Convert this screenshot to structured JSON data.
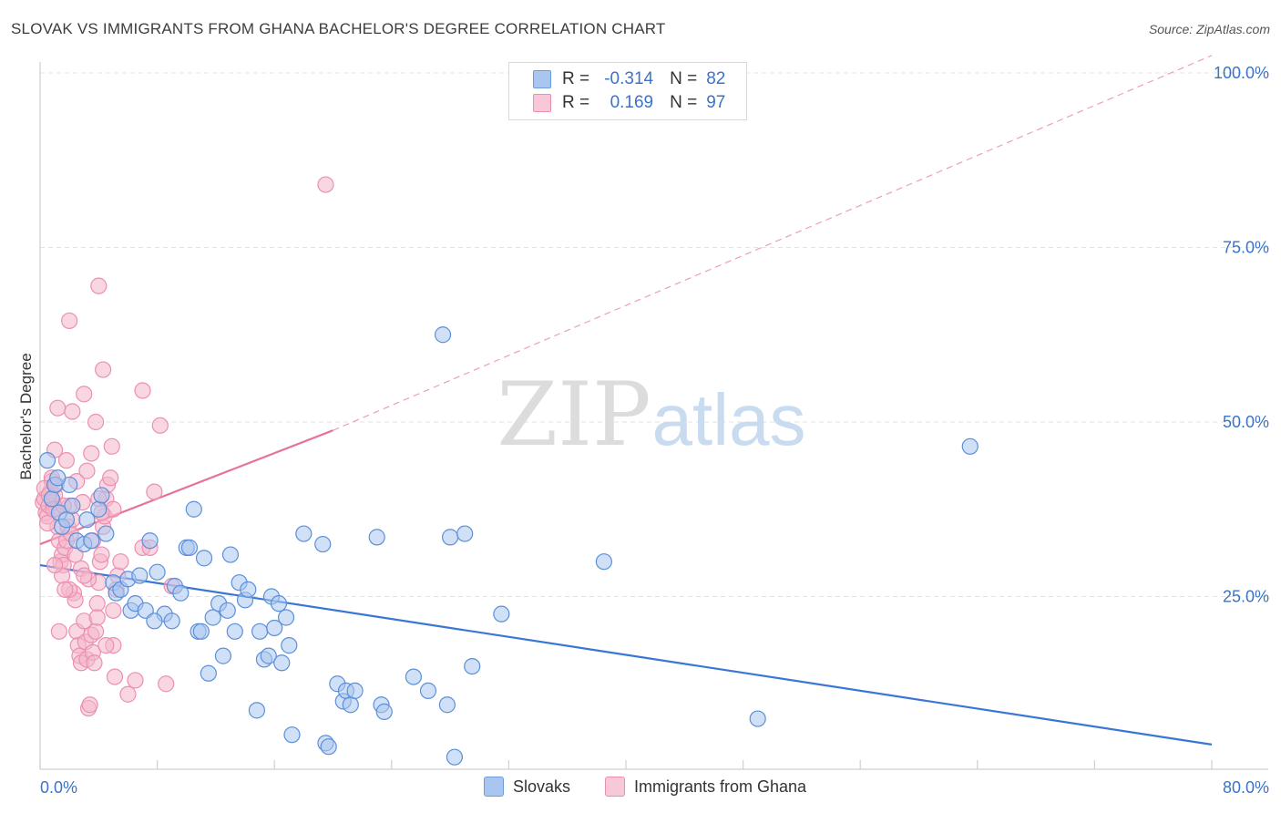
{
  "title": "SLOVAK VS IMMIGRANTS FROM GHANA BACHELOR'S DEGREE CORRELATION CHART",
  "source": "Source: ZipAtlas.com",
  "watermark": {
    "zip": "ZIP",
    "atlas": "atlas"
  },
  "legend": {
    "r_label": "R =",
    "n_label": "N =",
    "series1": {
      "r": "-0.314",
      "n": "82"
    },
    "series2": {
      "r": "0.169",
      "n": "97"
    }
  },
  "bottom_legend": {
    "series1": "Slovaks",
    "series2": "Immigrants from Ghana"
  },
  "chart_data": {
    "type": "scatter",
    "title": "SLOVAK VS IMMIGRANTS FROM GHANA BACHELOR'S DEGREE CORRELATION CHART",
    "xlabel": "",
    "ylabel": "Bachelor's Degree",
    "xlim": [
      0,
      80
    ],
    "ylim": [
      0,
      100
    ],
    "x_tick_labels": [
      "0.0%",
      "80.0%"
    ],
    "y_tick_labels": [
      "25.0%",
      "50.0%",
      "75.0%",
      "100.0%"
    ],
    "y_ticks": [
      25,
      50,
      75,
      100
    ],
    "colors": {
      "series1": "#3a76d6",
      "series2": "#e8739a",
      "series1_fill": "#a9c6f0",
      "series2_fill": "#f4b6cb"
    },
    "series": [
      {
        "name": "Slovaks",
        "r": -0.314,
        "n": 82,
        "trend": {
          "x0": 0,
          "y0": 29.5,
          "x1": 80,
          "y1": 3.8
        },
        "points": [
          [
            0.5,
            44.5
          ],
          [
            0.8,
            39
          ],
          [
            1,
            41
          ],
          [
            1.3,
            37
          ],
          [
            1.5,
            35
          ],
          [
            1.8,
            36
          ],
          [
            2.2,
            38
          ],
          [
            2.5,
            33
          ],
          [
            3,
            32.5
          ],
          [
            3.5,
            33
          ],
          [
            4,
            37.5
          ],
          [
            4.5,
            34
          ],
          [
            3.2,
            36
          ],
          [
            5,
            27
          ],
          [
            5.2,
            25.5
          ],
          [
            5.5,
            26
          ],
          [
            6,
            27.5
          ],
          [
            6.2,
            23
          ],
          [
            6.5,
            24
          ],
          [
            6.8,
            28
          ],
          [
            7.2,
            23
          ],
          [
            7.5,
            33
          ],
          [
            8,
            28.5
          ],
          [
            8.5,
            22.5
          ],
          [
            9,
            21.5
          ],
          [
            9.2,
            26.5
          ],
          [
            9.6,
            25.5
          ],
          [
            10,
            32
          ],
          [
            10.2,
            32
          ],
          [
            10.5,
            37.5
          ],
          [
            10.8,
            20
          ],
          [
            11,
            20
          ],
          [
            11.2,
            30.5
          ],
          [
            11.5,
            14
          ],
          [
            11.8,
            22
          ],
          [
            12.2,
            24
          ],
          [
            12.5,
            16.5
          ],
          [
            12.8,
            23
          ],
          [
            13,
            31
          ],
          [
            13.3,
            20
          ],
          [
            13.6,
            27
          ],
          [
            14,
            24.5
          ],
          [
            14.2,
            26
          ],
          [
            14.8,
            8.7
          ],
          [
            15,
            20
          ],
          [
            15.3,
            16
          ],
          [
            15.6,
            16.5
          ],
          [
            15.8,
            25
          ],
          [
            16,
            20.5
          ],
          [
            16.3,
            24
          ],
          [
            16.5,
            15.5
          ],
          [
            16.8,
            22
          ],
          [
            17,
            18
          ],
          [
            17.2,
            5.2
          ],
          [
            18,
            34
          ],
          [
            19.3,
            32.5
          ],
          [
            19.5,
            4
          ],
          [
            19.7,
            3.5
          ],
          [
            20.3,
            12.5
          ],
          [
            20.7,
            10
          ],
          [
            20.9,
            11.5
          ],
          [
            21.2,
            9.5
          ],
          [
            21.5,
            11.5
          ],
          [
            23,
            33.5
          ],
          [
            23.3,
            9.5
          ],
          [
            23.5,
            8.5
          ],
          [
            25.5,
            13.5
          ],
          [
            26.5,
            11.5
          ],
          [
            27.5,
            62.5
          ],
          [
            27.8,
            9.5
          ],
          [
            28,
            33.5
          ],
          [
            28.3,
            2
          ],
          [
            29,
            34
          ],
          [
            29.5,
            15
          ],
          [
            31.5,
            22.5
          ],
          [
            38.5,
            30
          ],
          [
            49,
            7.5
          ],
          [
            63.5,
            46.5
          ],
          [
            2,
            41
          ],
          [
            1.2,
            42
          ],
          [
            4.2,
            39.5
          ],
          [
            7.8,
            21.5
          ]
        ]
      },
      {
        "name": "Immigrants from Ghana",
        "r": 0.169,
        "n": 97,
        "trend": {
          "x0": 0,
          "y0": 32.5,
          "x1": 20,
          "y1": 48.8,
          "dashed_to": {
            "x": 80,
            "y": 102.5
          }
        },
        "points": [
          [
            0.2,
            38.5
          ],
          [
            0.3,
            39
          ],
          [
            0.4,
            37
          ],
          [
            0.5,
            36.5
          ],
          [
            0.6,
            38
          ],
          [
            0.7,
            40
          ],
          [
            0.8,
            41.5
          ],
          [
            0.9,
            38.5
          ],
          [
            1,
            39.5
          ],
          [
            1.1,
            37.5
          ],
          [
            1.2,
            35
          ],
          [
            1.3,
            33
          ],
          [
            1.4,
            30
          ],
          [
            1.5,
            31
          ],
          [
            1.6,
            29.5
          ],
          [
            1.7,
            32
          ],
          [
            1.8,
            33
          ],
          [
            1.9,
            35
          ],
          [
            2,
            38
          ],
          [
            2.1,
            34
          ],
          [
            2.2,
            36
          ],
          [
            2.3,
            25.5
          ],
          [
            2.4,
            24.5
          ],
          [
            2.5,
            20
          ],
          [
            2.6,
            18
          ],
          [
            2.7,
            16.5
          ],
          [
            2.8,
            15.5
          ],
          [
            3,
            21.5
          ],
          [
            3.1,
            18.5
          ],
          [
            3.2,
            16
          ],
          [
            3.3,
            9
          ],
          [
            3.4,
            9.5
          ],
          [
            3.5,
            19.5
          ],
          [
            3.6,
            17
          ],
          [
            3.7,
            15.5
          ],
          [
            3.8,
            20
          ],
          [
            3.9,
            24
          ],
          [
            4,
            27
          ],
          [
            4.1,
            30
          ],
          [
            4.2,
            31
          ],
          [
            4.3,
            35
          ],
          [
            4.4,
            36.5
          ],
          [
            4.5,
            39
          ],
          [
            4.6,
            41
          ],
          [
            4.8,
            42
          ],
          [
            5,
            18
          ],
          [
            5.1,
            13.5
          ],
          [
            5,
            23
          ],
          [
            5.2,
            26
          ],
          [
            5.3,
            28
          ],
          [
            5.5,
            30
          ],
          [
            6,
            11
          ],
          [
            6.5,
            13
          ],
          [
            7,
            32
          ],
          [
            7.5,
            32
          ],
          [
            7.8,
            40
          ],
          [
            8.2,
            49.5
          ],
          [
            8.6,
            12.5
          ],
          [
            9,
            26.5
          ],
          [
            4,
            69.5
          ],
          [
            2,
            64.5
          ],
          [
            4.3,
            57.5
          ],
          [
            7,
            54.5
          ],
          [
            1.2,
            52
          ],
          [
            2.2,
            51.5
          ],
          [
            3,
            54
          ],
          [
            3.8,
            50
          ],
          [
            4.9,
            46.5
          ],
          [
            1,
            46
          ],
          [
            1.8,
            44.5
          ],
          [
            3.5,
            45.5
          ],
          [
            0.8,
            42
          ],
          [
            2.5,
            41.5
          ],
          [
            3.2,
            43
          ],
          [
            4,
            39
          ],
          [
            5,
            37.5
          ],
          [
            1.5,
            28
          ],
          [
            2,
            26
          ],
          [
            2.8,
            29
          ],
          [
            3.3,
            27.5
          ],
          [
            1.3,
            20
          ],
          [
            4.5,
            18
          ],
          [
            3,
            28
          ],
          [
            1,
            29.5
          ],
          [
            0.5,
            35.5
          ],
          [
            4.2,
            37
          ],
          [
            3.6,
            33
          ],
          [
            2.4,
            31
          ],
          [
            1.7,
            26
          ],
          [
            3.9,
            22
          ],
          [
            19.5,
            84
          ],
          [
            0.3,
            40.5
          ],
          [
            0.6,
            39.5
          ],
          [
            1.1,
            41
          ],
          [
            2.9,
            38.5
          ],
          [
            0.9,
            37.5
          ],
          [
            1.6,
            38
          ]
        ]
      }
    ]
  }
}
